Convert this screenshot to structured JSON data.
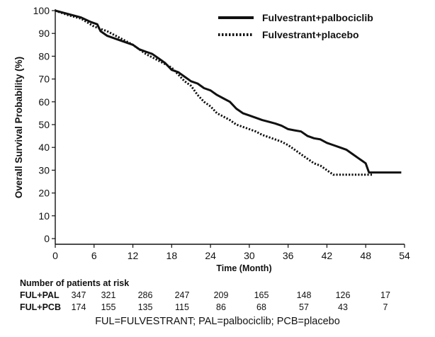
{
  "chart_data": {
    "type": "line",
    "title": "",
    "xlabel": "Time (Month)",
    "ylabel": "Overall Survival Probability (%)",
    "xlim": [
      0,
      54
    ],
    "ylim": [
      0,
      100
    ],
    "x_ticks": [
      0,
      6,
      12,
      18,
      24,
      30,
      36,
      42,
      48,
      54
    ],
    "y_ticks": [
      0,
      10,
      20,
      30,
      40,
      50,
      60,
      70,
      80,
      90,
      100
    ],
    "grid": false,
    "legend_position": "top-right",
    "series": [
      {
        "name": "Fulvestrant+palbociclib",
        "style": "solid",
        "color": "#111111",
        "points": [
          [
            0,
            100
          ],
          [
            2,
            98.5
          ],
          [
            4,
            97
          ],
          [
            5.5,
            95
          ],
          [
            6.5,
            94
          ],
          [
            7,
            91
          ],
          [
            8,
            89
          ],
          [
            10,
            87
          ],
          [
            12,
            85
          ],
          [
            13,
            83
          ],
          [
            14,
            82
          ],
          [
            15,
            81
          ],
          [
            16,
            79
          ],
          [
            17,
            77
          ],
          [
            18,
            74
          ],
          [
            19,
            73
          ],
          [
            20,
            71
          ],
          [
            21,
            69
          ],
          [
            22,
            68
          ],
          [
            23,
            66
          ],
          [
            24,
            65
          ],
          [
            25,
            63
          ],
          [
            26,
            61.5
          ],
          [
            27,
            60
          ],
          [
            28,
            57
          ],
          [
            29,
            55
          ],
          [
            30,
            54
          ],
          [
            32,
            52
          ],
          [
            34,
            50.5
          ],
          [
            35,
            49.5
          ],
          [
            36,
            48
          ],
          [
            37,
            47.5
          ],
          [
            38,
            47
          ],
          [
            39,
            45
          ],
          [
            40,
            44
          ],
          [
            41,
            43.5
          ],
          [
            42,
            42
          ],
          [
            43,
            41
          ],
          [
            44,
            40
          ],
          [
            45,
            39
          ],
          [
            46,
            37
          ],
          [
            47,
            35
          ],
          [
            47.5,
            34
          ],
          [
            48,
            33
          ],
          [
            48.5,
            29
          ],
          [
            49,
            29
          ],
          [
            53.5,
            29
          ]
        ]
      },
      {
        "name": "Fulvestrant+placebo",
        "style": "dotted",
        "color": "#111111",
        "points": [
          [
            0,
            100
          ],
          [
            2,
            98
          ],
          [
            4,
            96.5
          ],
          [
            6,
            93
          ],
          [
            8,
            91
          ],
          [
            10,
            88
          ],
          [
            12,
            85
          ],
          [
            14,
            81
          ],
          [
            16,
            78
          ],
          [
            18,
            75
          ],
          [
            19,
            72
          ],
          [
            20,
            69
          ],
          [
            21,
            67
          ],
          [
            22,
            63
          ],
          [
            23,
            60
          ],
          [
            24,
            58
          ],
          [
            25,
            55
          ],
          [
            26,
            53.5
          ],
          [
            27,
            52
          ],
          [
            28,
            50
          ],
          [
            29,
            49
          ],
          [
            30,
            48
          ],
          [
            31,
            47
          ],
          [
            32,
            45.5
          ],
          [
            33,
            44.5
          ],
          [
            34,
            43.5
          ],
          [
            35,
            42.5
          ],
          [
            36,
            41
          ],
          [
            37,
            39
          ],
          [
            38,
            37
          ],
          [
            39,
            35
          ],
          [
            40,
            33
          ],
          [
            41,
            32
          ],
          [
            42,
            30
          ],
          [
            43,
            28
          ],
          [
            46,
            28
          ],
          [
            48,
            28
          ],
          [
            49,
            28
          ]
        ]
      }
    ]
  },
  "risk_table": {
    "title": "Number of patients at risk",
    "rows": [
      {
        "label": "FUL+PAL",
        "values": [
          "347",
          "321",
          "286",
          "247",
          "209",
          "165",
          "148",
          "126",
          "17"
        ]
      },
      {
        "label": "FUL+PCB",
        "values": [
          "174",
          "155",
          "135",
          "115",
          "86",
          "68",
          "57",
          "43",
          "7"
        ]
      }
    ]
  },
  "footnote": "FUL=FULVESTRANT; PAL=palbociclib; PCB=placebo"
}
